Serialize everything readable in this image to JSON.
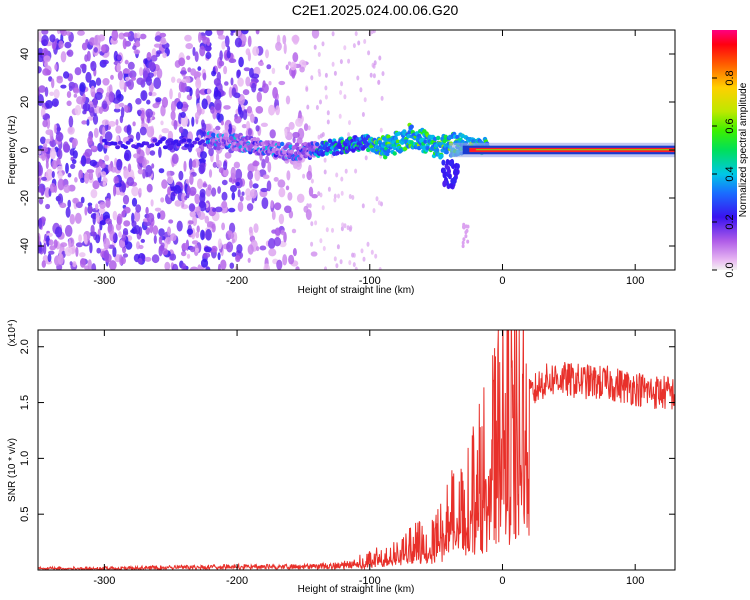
{
  "title": "C2E1.2025.024.00.06.G20",
  "chart_data": [
    {
      "type": "heatmap",
      "xlabel": "Height of straight line (km)",
      "ylabel": "Frequency (Hz)",
      "xlim": [
        -350,
        130
      ],
      "ylim": [
        -50,
        50
      ],
      "x_ticks": [
        -300,
        -200,
        -100,
        0,
        100
      ],
      "y_ticks": [
        -40,
        -20,
        0,
        20,
        40
      ],
      "colorbar": {
        "label": "Normalized spectral amplitude",
        "range": [
          0.0,
          1.0
        ],
        "ticks": [
          0.0,
          0.2,
          0.4,
          0.6,
          0.8
        ]
      },
      "ridge": [
        [
          -220,
          4
        ],
        [
          -200,
          3
        ],
        [
          -180,
          1
        ],
        [
          -160,
          -1
        ],
        [
          -140,
          0
        ],
        [
          -120,
          2
        ],
        [
          -100,
          3
        ],
        [
          -90,
          1
        ],
        [
          -80,
          3
        ],
        [
          -70,
          6
        ],
        [
          -60,
          4
        ],
        [
          -50,
          1
        ],
        [
          -40,
          2
        ],
        [
          -30,
          3
        ],
        [
          -20,
          1
        ],
        [
          -10,
          2
        ],
        [
          0,
          1
        ],
        [
          20,
          0.5
        ],
        [
          60,
          0.5
        ],
        [
          130,
          0.5
        ]
      ],
      "grid": false
    },
    {
      "type": "line",
      "xlabel": "Height of straight line (km)",
      "ylabel": "SNR (10 * v/v)",
      "y_multiplier": "(x10⁴)",
      "xlim": [
        -350,
        130
      ],
      "ylim": [
        0,
        2.15
      ],
      "x_ticks": [
        -300,
        -200,
        -100,
        0,
        100
      ],
      "y_ticks": [
        0.5,
        1.0,
        1.5,
        2.0
      ],
      "y_tick_labels": [
        "0.5",
        "1.0",
        "1.5",
        "2.0"
      ],
      "series": [
        {
          "color": "#e8302a",
          "x": [
            -350,
            -300,
            -250,
            -200,
            -150,
            -120,
            -100,
            -80,
            -60,
            -50,
            -40,
            -30,
            -20,
            -10,
            0,
            10,
            20,
            30,
            40,
            50,
            60,
            70,
            80,
            90,
            100,
            110,
            120,
            130
          ],
          "y": [
            0.02,
            0.02,
            0.03,
            0.04,
            0.04,
            0.06,
            0.1,
            0.16,
            0.28,
            0.4,
            0.5,
            0.65,
            0.85,
            1.1,
            1.35,
            1.45,
            1.55,
            1.68,
            1.72,
            1.7,
            1.69,
            1.68,
            1.67,
            1.65,
            1.63,
            1.6,
            1.59,
            1.58
          ]
        }
      ]
    }
  ]
}
